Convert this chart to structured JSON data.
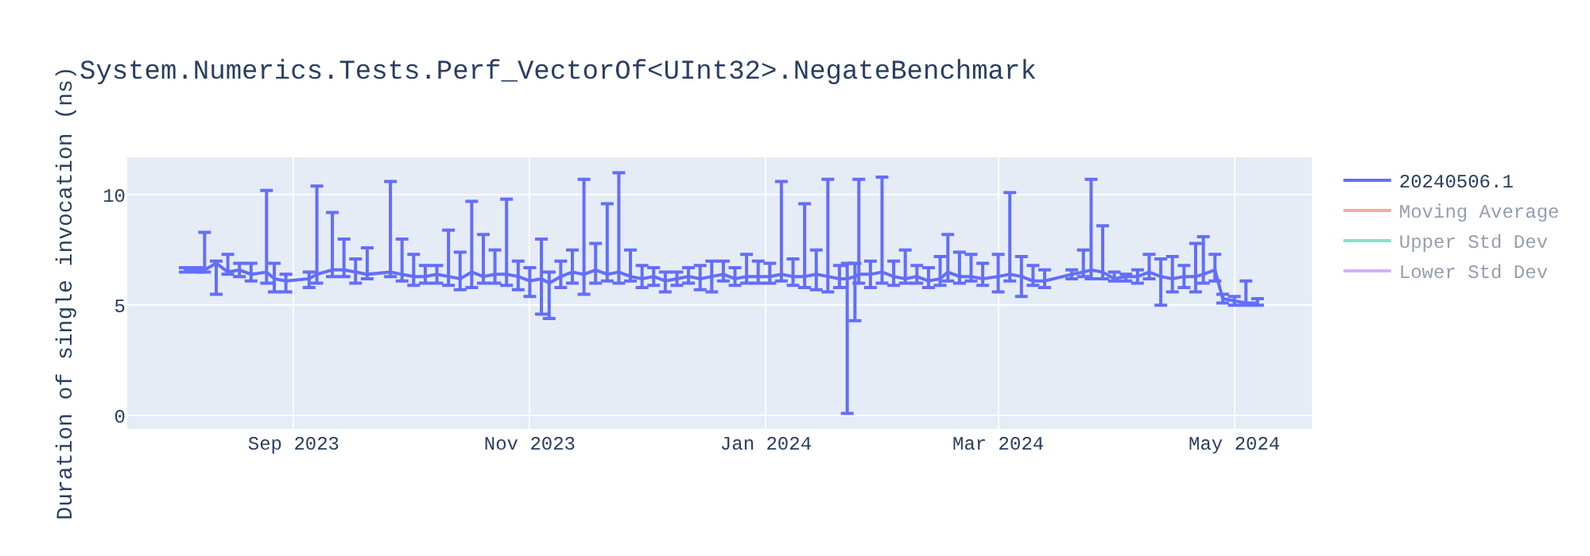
{
  "chart_data": {
    "type": "line",
    "title": "System.Numerics.Tests.Perf_VectorOf<UInt32>.NegateBenchmark",
    "ylabel": "Duration of single invocation (ns)",
    "xlim": [
      "2023-07-20",
      "2024-05-21"
    ],
    "xticks": [
      {
        "value": "2023-09-01",
        "label": "Sep 2023"
      },
      {
        "value": "2023-11-01",
        "label": "Nov 2023"
      },
      {
        "value": "2024-01-01",
        "label": "Jan 2024"
      },
      {
        "value": "2024-03-01",
        "label": "Mar 2024"
      },
      {
        "value": "2024-05-01",
        "label": "May 2024"
      }
    ],
    "ylim": [
      -0.6,
      11.7
    ],
    "yticks": [
      0,
      5,
      10
    ],
    "grid": true,
    "legend": "top right",
    "marker": "none",
    "line_style": "solid",
    "series": [
      {
        "name": "20240506.1",
        "color": "#636efa",
        "x": [
          "2023-08-04",
          "2023-08-07",
          "2023-08-09",
          "2023-08-12",
          "2023-08-15",
          "2023-08-18",
          "2023-08-21",
          "2023-08-25",
          "2023-08-27",
          "2023-08-30",
          "2023-09-05",
          "2023-09-07",
          "2023-09-11",
          "2023-09-14",
          "2023-09-17",
          "2023-09-20",
          "2023-09-26",
          "2023-09-29",
          "2023-10-02",
          "2023-10-05",
          "2023-10-08",
          "2023-10-11",
          "2023-10-14",
          "2023-10-17",
          "2023-10-20",
          "2023-10-23",
          "2023-10-26",
          "2023-10-29",
          "2023-11-01",
          "2023-11-04",
          "2023-11-06",
          "2023-11-09",
          "2023-11-12",
          "2023-11-15",
          "2023-11-18",
          "2023-11-21",
          "2023-11-24",
          "2023-11-27",
          "2023-11-30",
          "2023-12-03",
          "2023-12-06",
          "2023-12-09",
          "2023-12-12",
          "2023-12-15",
          "2023-12-18",
          "2023-12-21",
          "2023-12-24",
          "2023-12-27",
          "2023-12-30",
          "2024-01-02",
          "2024-01-05",
          "2024-01-08",
          "2024-01-11",
          "2024-01-14",
          "2024-01-17",
          "2024-01-20",
          "2024-01-22",
          "2024-01-24",
          "2024-01-25",
          "2024-01-28",
          "2024-01-31",
          "2024-02-03",
          "2024-02-06",
          "2024-02-09",
          "2024-02-12",
          "2024-02-15",
          "2024-02-17",
          "2024-02-20",
          "2024-02-23",
          "2024-02-26",
          "2024-03-01",
          "2024-03-04",
          "2024-03-07",
          "2024-03-10",
          "2024-03-13",
          "2024-03-20",
          "2024-03-23",
          "2024-03-25",
          "2024-03-28",
          "2024-03-31",
          "2024-04-03",
          "2024-04-06",
          "2024-04-09",
          "2024-04-12",
          "2024-04-15",
          "2024-04-18",
          "2024-04-21",
          "2024-04-23",
          "2024-04-26",
          "2024-04-28",
          "2024-05-01",
          "2024-05-04",
          "2024-05-07"
        ],
        "values": [
          6.6,
          6.6,
          6.6,
          6.9,
          6.5,
          6.6,
          6.4,
          6.5,
          6.2,
          6.1,
          6.2,
          6.4,
          6.6,
          6.6,
          6.5,
          6.4,
          6.5,
          6.4,
          6.3,
          6.3,
          6.4,
          6.3,
          6.2,
          6.5,
          6.3,
          6.4,
          6.4,
          6.3,
          6.1,
          6.2,
          6.0,
          6.3,
          6.5,
          6.4,
          6.6,
          6.4,
          6.5,
          6.3,
          6.2,
          6.3,
          6.1,
          6.2,
          6.3,
          6.2,
          6.3,
          6.4,
          6.2,
          6.3,
          6.3,
          6.3,
          6.4,
          6.3,
          6.3,
          6.4,
          6.3,
          6.2,
          6.2,
          6.3,
          6.4,
          6.4,
          6.5,
          6.3,
          6.2,
          6.3,
          6.1,
          6.2,
          6.5,
          6.3,
          6.3,
          6.2,
          6.3,
          6.4,
          6.3,
          6.1,
          6.1,
          6.4,
          6.5,
          6.6,
          6.5,
          6.2,
          6.3,
          6.3,
          6.5,
          6.3,
          6.2,
          6.3,
          6.3,
          6.4,
          6.6,
          5.3,
          5.2,
          5.1,
          5.1
        ],
        "errors": [
          [
            6.5,
            6.7
          ],
          [
            6.5,
            6.7
          ],
          [
            6.5,
            8.3
          ],
          [
            5.5,
            7.0
          ],
          [
            6.4,
            7.3
          ],
          [
            6.3,
            6.9
          ],
          [
            6.1,
            6.9
          ],
          [
            6.0,
            10.2
          ],
          [
            5.6,
            6.9
          ],
          [
            5.6,
            6.4
          ],
          [
            5.8,
            6.5
          ],
          [
            6.0,
            10.4
          ],
          [
            6.3,
            9.2
          ],
          [
            6.3,
            8.0
          ],
          [
            6.0,
            7.1
          ],
          [
            6.2,
            7.6
          ],
          [
            6.3,
            10.6
          ],
          [
            6.1,
            8.0
          ],
          [
            5.9,
            7.3
          ],
          [
            6.0,
            6.8
          ],
          [
            6.0,
            6.8
          ],
          [
            5.9,
            8.4
          ],
          [
            5.7,
            7.4
          ],
          [
            5.8,
            9.7
          ],
          [
            6.0,
            8.2
          ],
          [
            6.0,
            7.5
          ],
          [
            5.9,
            9.8
          ],
          [
            5.7,
            7.0
          ],
          [
            5.4,
            6.7
          ],
          [
            4.6,
            8.0
          ],
          [
            4.4,
            6.5
          ],
          [
            5.8,
            7.0
          ],
          [
            6.0,
            7.5
          ],
          [
            5.5,
            10.7
          ],
          [
            6.0,
            7.8
          ],
          [
            6.1,
            9.6
          ],
          [
            6.0,
            11.0
          ],
          [
            6.1,
            7.5
          ],
          [
            5.8,
            6.8
          ],
          [
            5.9,
            6.7
          ],
          [
            5.6,
            6.5
          ],
          [
            5.9,
            6.5
          ],
          [
            6.0,
            6.7
          ],
          [
            5.7,
            6.8
          ],
          [
            5.6,
            7.0
          ],
          [
            6.1,
            7.0
          ],
          [
            5.9,
            6.7
          ],
          [
            6.0,
            7.3
          ],
          [
            6.0,
            7.0
          ],
          [
            6.0,
            6.9
          ],
          [
            6.1,
            10.6
          ],
          [
            5.9,
            7.1
          ],
          [
            5.8,
            9.6
          ],
          [
            5.7,
            7.5
          ],
          [
            5.6,
            10.7
          ],
          [
            5.8,
            6.8
          ],
          [
            0.1,
            6.9
          ],
          [
            4.3,
            6.9
          ],
          [
            6.0,
            10.7
          ],
          [
            5.8,
            7.0
          ],
          [
            6.0,
            10.8
          ],
          [
            5.9,
            7.0
          ],
          [
            6.0,
            7.5
          ],
          [
            6.0,
            6.8
          ],
          [
            5.8,
            6.7
          ],
          [
            5.9,
            7.2
          ],
          [
            6.1,
            8.2
          ],
          [
            6.0,
            7.4
          ],
          [
            6.1,
            7.3
          ],
          [
            5.9,
            6.9
          ],
          [
            5.6,
            7.3
          ],
          [
            6.1,
            10.1
          ],
          [
            5.4,
            7.2
          ],
          [
            5.9,
            6.8
          ],
          [
            5.8,
            6.6
          ],
          [
            6.2,
            6.6
          ],
          [
            6.3,
            7.5
          ],
          [
            6.2,
            10.7
          ],
          [
            6.2,
            8.6
          ],
          [
            6.1,
            6.5
          ],
          [
            6.1,
            6.4
          ],
          [
            6.0,
            6.6
          ],
          [
            6.2,
            7.3
          ],
          [
            5.0,
            7.1
          ],
          [
            5.6,
            7.2
          ],
          [
            5.8,
            6.8
          ],
          [
            5.6,
            7.8
          ],
          [
            6.0,
            8.1
          ],
          [
            6.1,
            7.3
          ],
          [
            5.1,
            5.5
          ],
          [
            5.0,
            5.4
          ],
          [
            5.0,
            6.1
          ],
          [
            5.0,
            5.3
          ]
        ]
      },
      {
        "name": "Moving Average",
        "color": "#ef553b"
      },
      {
        "name": "Upper Std Dev",
        "color": "#00cc96"
      },
      {
        "name": "Lower Std Dev",
        "color": "#ab63fa"
      }
    ]
  }
}
